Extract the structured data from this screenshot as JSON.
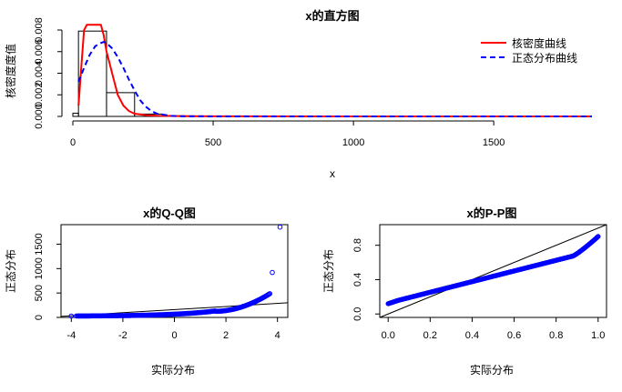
{
  "colors": {
    "kde": "#ff0000",
    "normal": "#0000ff",
    "points": "#0000ff",
    "line": "#000000",
    "bars": "#000000"
  },
  "chart_data": [
    {
      "type": "histogram",
      "title": "x的直方图",
      "xlabel": "x",
      "ylabel": "核密度度值",
      "xlim": [
        0,
        1850
      ],
      "ylim": [
        0,
        0.008
      ],
      "xticks": [
        0,
        500,
        1000,
        1500
      ],
      "yticks": [
        0.0,
        0.002,
        0.004,
        0.006,
        0.008
      ],
      "ytick_labels": [
        "0.000",
        "0.002",
        "0.004",
        "0.006",
        "0.008"
      ],
      "bins": [
        {
          "start": 0,
          "end": 20,
          "density": 0.0003
        },
        {
          "start": 20,
          "end": 120,
          "density": 0.0079
        },
        {
          "start": 120,
          "end": 220,
          "density": 0.0022
        },
        {
          "start": 220,
          "end": 320,
          "density": 0.00022
        },
        {
          "start": 320,
          "end": 420,
          "density": 5e-05
        },
        {
          "start": 420,
          "end": 520,
          "density": 1e-05
        },
        {
          "start": 1820,
          "end": 1850,
          "density": 0.0
        }
      ],
      "legend": {
        "position": "top-right",
        "entries": [
          {
            "label": "核密度曲线",
            "style": "solid",
            "color": "#ff0000"
          },
          {
            "label": "正态分布曲线",
            "style": "dashed",
            "color": "#0000ff"
          }
        ]
      },
      "series": [
        {
          "name": "核密度曲线",
          "style": "solid",
          "color": "#ff0000",
          "x": [
            20,
            30,
            40,
            50,
            60,
            80,
            100,
            110,
            120,
            130,
            140,
            150,
            160,
            180,
            200,
            220,
            260,
            300,
            400,
            600,
            1000,
            1500,
            1850
          ],
          "y": [
            0.001,
            0.0045,
            0.008,
            0.0085,
            0.0085,
            0.0085,
            0.0085,
            0.0075,
            0.006,
            0.005,
            0.004,
            0.003,
            0.002,
            0.001,
            0.0005,
            0.00025,
            0.00012,
            6e-05,
            2e-05,
            1e-05,
            3e-06,
            1e-06,
            0
          ]
        },
        {
          "name": "正态分布曲线",
          "style": "dashed",
          "color": "#0000ff",
          "x": [
            20,
            40,
            60,
            80,
            100,
            110,
            120,
            140,
            160,
            180,
            200,
            220,
            240,
            260,
            280,
            300,
            350,
            400,
            600,
            1000,
            1850
          ],
          "y": [
            0.0032,
            0.0045,
            0.0057,
            0.0065,
            0.0068,
            0.0069,
            0.0068,
            0.0063,
            0.0055,
            0.0045,
            0.0034,
            0.0024,
            0.0015,
            0.0009,
            0.0005,
            0.00025,
            5e-05,
            1e-05,
            0,
            0,
            0
          ]
        }
      ]
    },
    {
      "type": "scatter",
      "title": "x的Q-Q图",
      "xlabel": "实际分布",
      "ylabel": "正态分布",
      "xlim": [
        -4.4,
        4.4
      ],
      "ylim": [
        0,
        1900
      ],
      "xticks": [
        -4,
        -2,
        0,
        2,
        4
      ],
      "yticks": [
        0,
        500,
        1000,
        1500
      ],
      "reference_line": {
        "x": [
          -4.4,
          4.4
        ],
        "y": [
          20,
          300
        ]
      }
    },
    {
      "type": "scatter",
      "title": "x的P-P图",
      "xlabel": "实际分布",
      "ylabel": "正态分布",
      "xlim": [
        -0.04,
        1.04
      ],
      "ylim": [
        -0.04,
        1.04
      ],
      "xticks": [
        0.0,
        0.2,
        0.4,
        0.6,
        0.8,
        1.0
      ],
      "xtick_labels": [
        "0.0",
        "0.2",
        "0.4",
        "0.6",
        "0.8",
        "1.0"
      ],
      "yticks": [
        0.0,
        0.4,
        0.8
      ],
      "ytick_labels": [
        "0.0",
        "0.4",
        "0.8"
      ],
      "reference_line": {
        "x": [
          -0.04,
          1.04
        ],
        "y": [
          -0.04,
          1.04
        ]
      }
    }
  ]
}
